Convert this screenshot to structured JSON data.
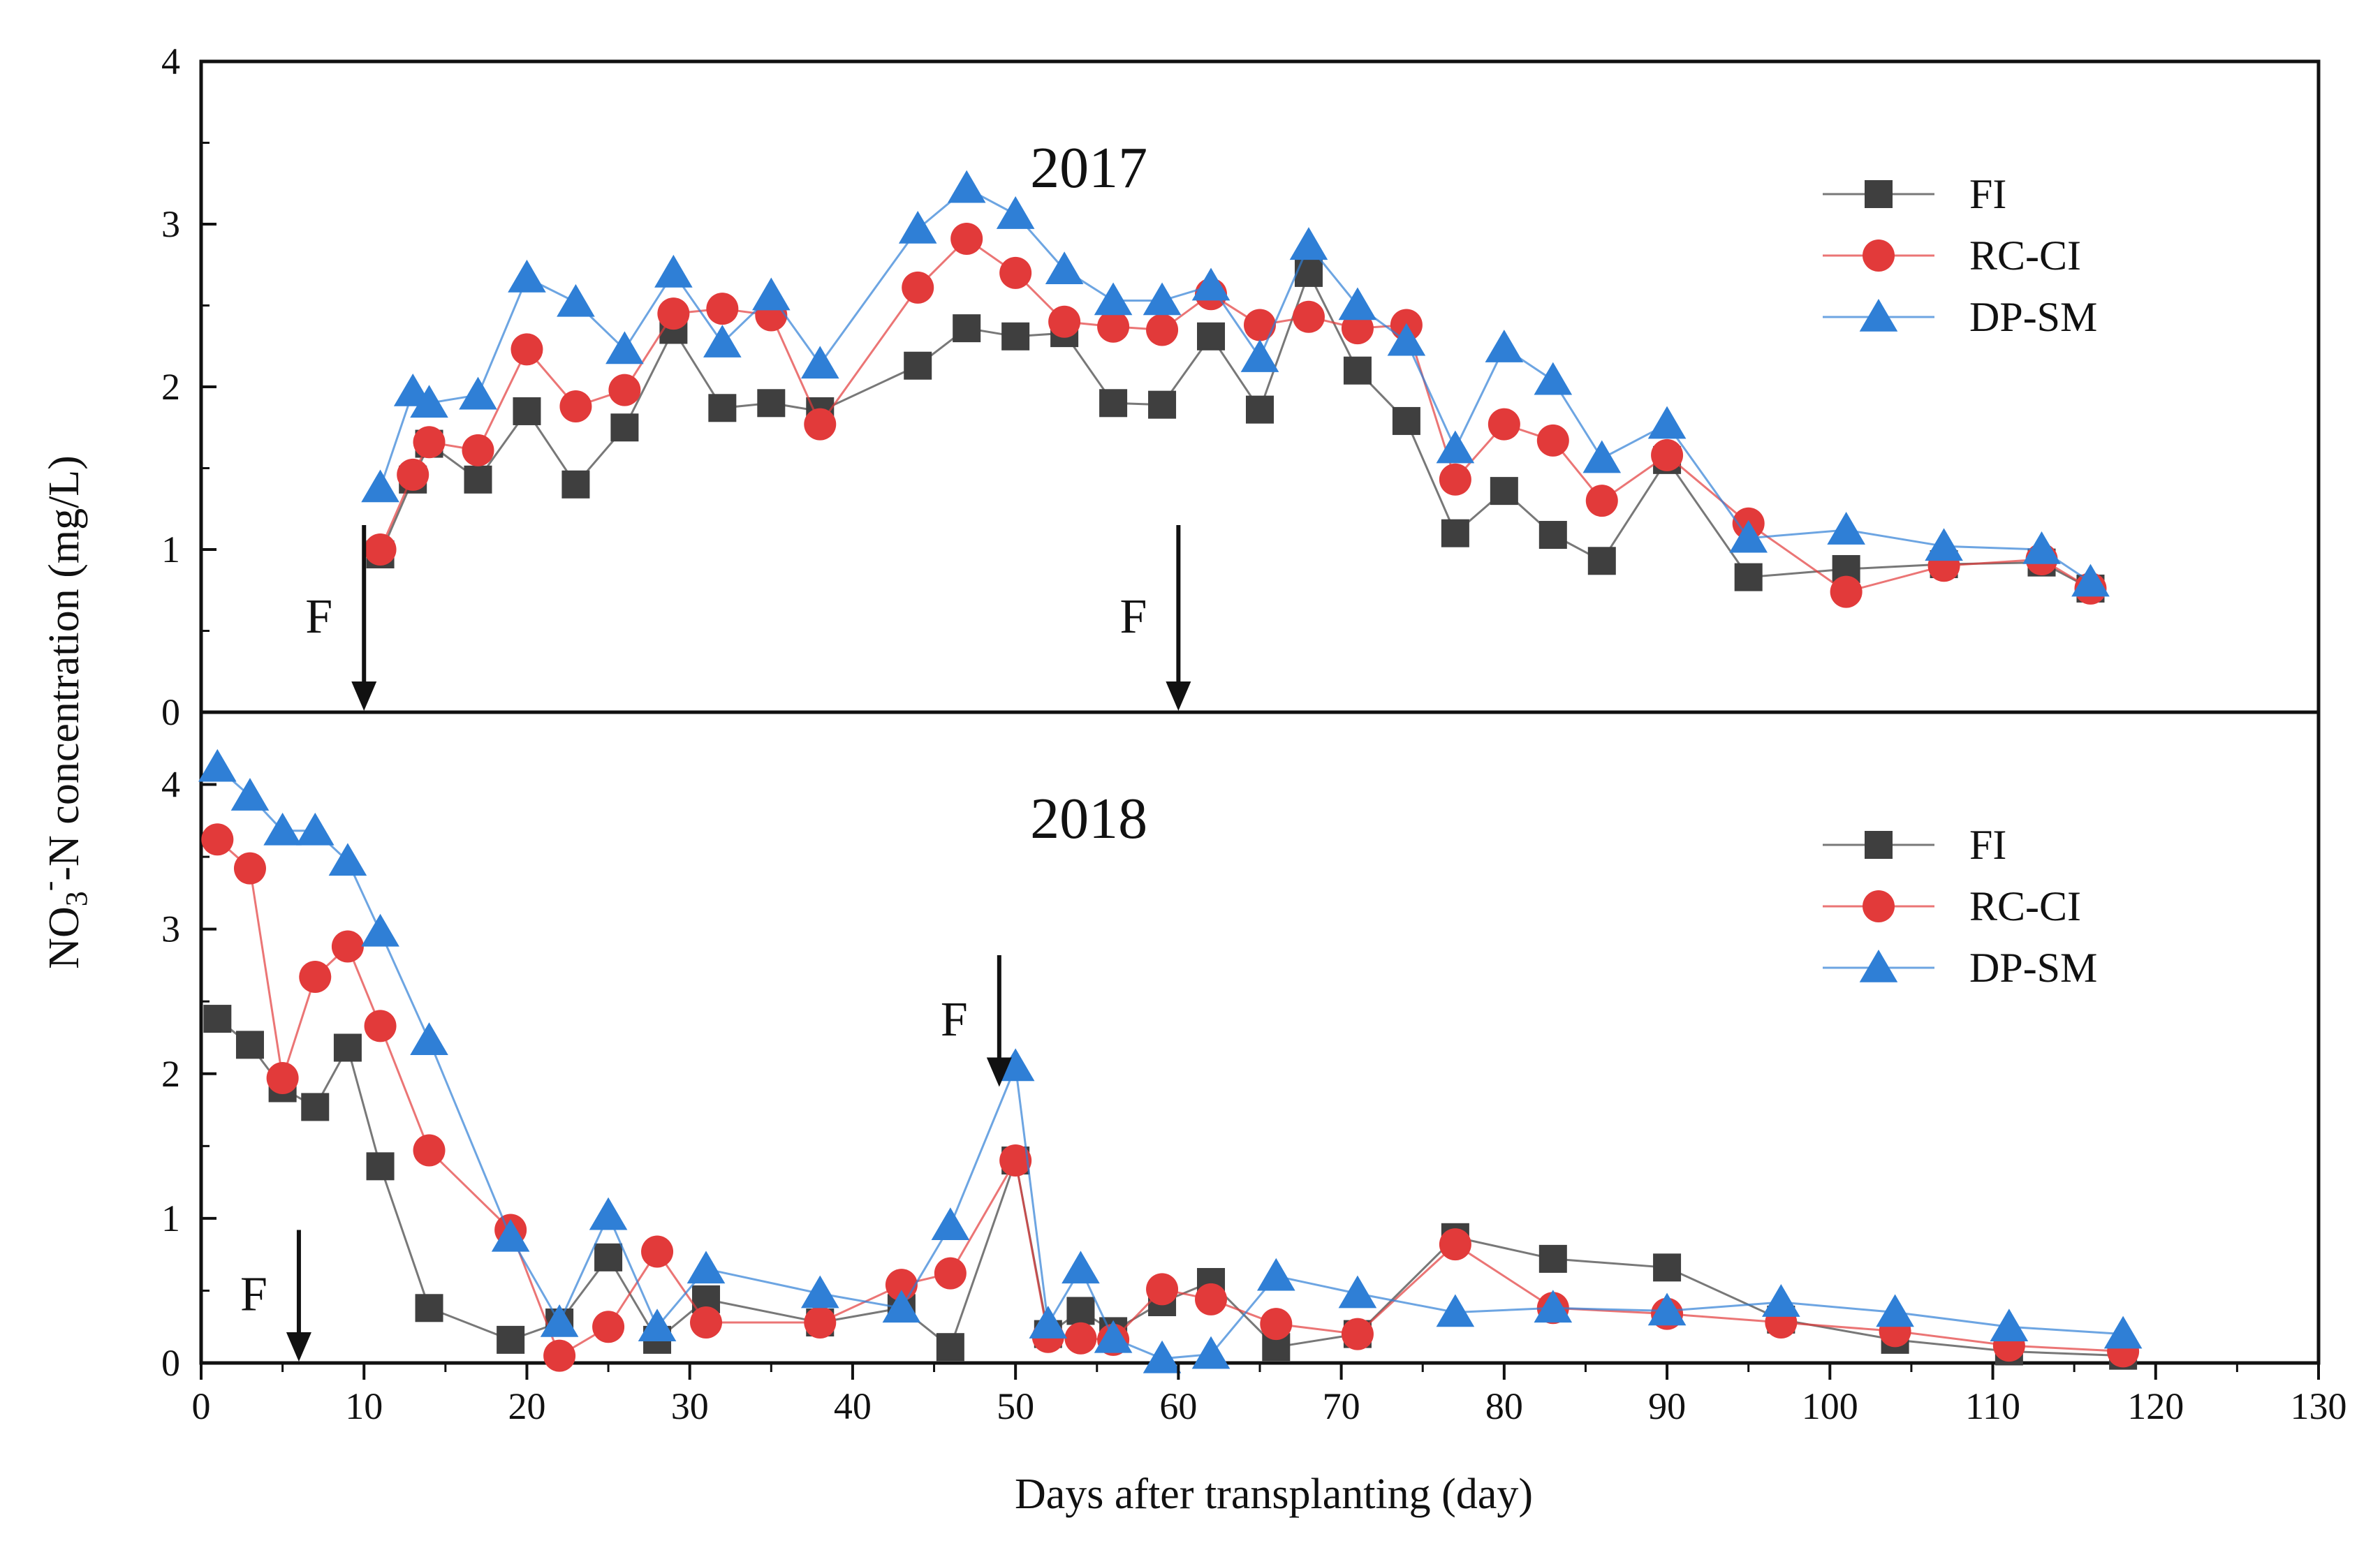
{
  "chart_data": {
    "type": "line",
    "xlabel": "Days after transplanting (day)",
    "ylabel": {
      "prefix": "NO",
      "sub": "3",
      "sup": "-",
      "suffix": "-N concentration (mg/L)"
    },
    "xlim": [
      0,
      130
    ],
    "xticks": [
      0,
      10,
      20,
      30,
      40,
      50,
      60,
      70,
      80,
      90,
      100,
      110,
      120,
      130
    ],
    "colors": {
      "FI": "#3f3f3f",
      "RC-CI": "#e23a3a",
      "DP-SM": "#2f7fd6"
    },
    "markers": {
      "FI": "square",
      "RC-CI": "circle",
      "DP-SM": "triangle"
    },
    "panels": [
      {
        "title": "2017",
        "ylim": [
          0,
          4
        ],
        "yticks": [
          0,
          1,
          2,
          3,
          4
        ],
        "legend_position": "top-right",
        "annotations": [
          {
            "label": "F",
            "x": 10,
            "y_from": 1.15,
            "y_to": 0.0
          },
          {
            "label": "F",
            "x": 60,
            "y_from": 1.15,
            "y_to": 0.0
          }
        ],
        "series": [
          {
            "name": "FI",
            "x": [
              11,
              13,
              14,
              17,
              20,
              23,
              26,
              29,
              32,
              35,
              38,
              44,
              47,
              50,
              53,
              56,
              59,
              62,
              65,
              68,
              71,
              74,
              77,
              80,
              83,
              86,
              90,
              95,
              101,
              107,
              113,
              116
            ],
            "y": [
              0.97,
              1.43,
              1.65,
              1.43,
              1.85,
              1.4,
              1.75,
              2.35,
              1.87,
              1.9,
              1.85,
              2.13,
              2.36,
              2.31,
              2.33,
              1.9,
              1.89,
              2.31,
              1.86,
              2.7,
              2.1,
              1.79,
              1.1,
              1.36,
              1.09,
              0.93,
              1.55,
              0.83,
              0.88,
              0.91,
              0.92,
              0.76
            ]
          },
          {
            "name": "RC-CI",
            "x": [
              11,
              13,
              14,
              17,
              20,
              23,
              26,
              29,
              32,
              35,
              38,
              44,
              47,
              50,
              53,
              56,
              59,
              62,
              65,
              68,
              71,
              74,
              77,
              80,
              83,
              86,
              90,
              95,
              101,
              107,
              113,
              116
            ],
            "y": [
              1.0,
              1.46,
              1.66,
              1.61,
              2.23,
              1.88,
              1.98,
              2.45,
              2.48,
              2.44,
              1.77,
              2.61,
              2.91,
              2.7,
              2.4,
              2.37,
              2.35,
              2.57,
              2.38,
              2.43,
              2.36,
              2.38,
              1.43,
              1.77,
              1.67,
              1.3,
              1.58,
              1.16,
              0.74,
              0.9,
              0.94,
              0.76
            ]
          },
          {
            "name": "DP-SM",
            "x": [
              11,
              13,
              14,
              17,
              20,
              23,
              26,
              29,
              32,
              35,
              38,
              44,
              47,
              50,
              53,
              56,
              59,
              62,
              65,
              68,
              71,
              74,
              77,
              80,
              83,
              86,
              90,
              95,
              101,
              107,
              113,
              116
            ],
            "y": [
              1.38,
              1.97,
              1.9,
              1.95,
              2.67,
              2.52,
              2.23,
              2.7,
              2.27,
              2.56,
              2.14,
              2.97,
              3.22,
              3.06,
              2.72,
              2.53,
              2.53,
              2.62,
              2.18,
              2.87,
              2.5,
              2.28,
              1.62,
              2.24,
              2.04,
              1.56,
              1.77,
              1.07,
              1.12,
              1.02,
              1.0,
              0.8
            ]
          }
        ]
      },
      {
        "title": "2018",
        "ylim": [
          0,
          4.5
        ],
        "yticks": [
          0,
          1,
          2,
          3,
          4
        ],
        "legend_position": "top-right",
        "annotations": [
          {
            "label": "F",
            "x": 6,
            "y_from": 0.92,
            "y_to": 0.0
          },
          {
            "label": "F",
            "x": 49,
            "y_from": 2.82,
            "y_to": 1.9
          }
        ],
        "series": [
          {
            "name": "FI",
            "x": [
              1,
              3,
              5,
              7,
              9,
              11,
              14,
              19,
              22,
              25,
              28,
              31,
              38,
              43,
              46,
              50,
              52,
              54,
              56,
              59,
              62,
              66,
              71,
              77,
              83,
              90,
              97,
              104,
              111,
              118
            ],
            "y": [
              2.38,
              2.2,
              1.9,
              1.77,
              2.18,
              1.36,
              0.38,
              0.16,
              0.28,
              0.73,
              0.16,
              0.44,
              0.28,
              0.38,
              0.11,
              1.4,
              0.2,
              0.36,
              0.22,
              0.42,
              0.56,
              0.11,
              0.2,
              0.87,
              0.72,
              0.66,
              0.3,
              0.16,
              0.08,
              0.05
            ]
          },
          {
            "name": "RC-CI",
            "x": [
              1,
              3,
              5,
              7,
              9,
              11,
              14,
              19,
              22,
              25,
              28,
              31,
              38,
              43,
              46,
              50,
              52,
              54,
              56,
              59,
              62,
              66,
              71,
              77,
              83,
              90,
              97,
              104,
              111,
              118
            ],
            "y": [
              3.62,
              3.42,
              1.97,
              2.67,
              2.88,
              2.33,
              1.47,
              0.92,
              0.05,
              0.25,
              0.77,
              0.28,
              0.28,
              0.54,
              0.62,
              1.4,
              0.18,
              0.17,
              0.16,
              0.51,
              0.44,
              0.27,
              0.2,
              0.82,
              0.38,
              0.34,
              0.28,
              0.22,
              0.12,
              0.08
            ]
          },
          {
            "name": "DP-SM",
            "x": [
              1,
              3,
              5,
              7,
              9,
              11,
              14,
              19,
              22,
              25,
              28,
              31,
              38,
              43,
              46,
              50,
              52,
              54,
              56,
              59,
              62,
              66,
              71,
              77,
              83,
              90,
              97,
              104,
              111,
              118
            ],
            "y": [
              4.12,
              3.92,
              3.68,
              3.68,
              3.47,
              2.98,
              2.23,
              0.87,
              0.28,
              1.02,
              0.25,
              0.65,
              0.48,
              0.38,
              0.95,
              2.05,
              0.27,
              0.65,
              0.17,
              0.03,
              0.06,
              0.6,
              0.48,
              0.35,
              0.38,
              0.36,
              0.42,
              0.35,
              0.25,
              0.2
            ]
          }
        ]
      }
    ]
  }
}
